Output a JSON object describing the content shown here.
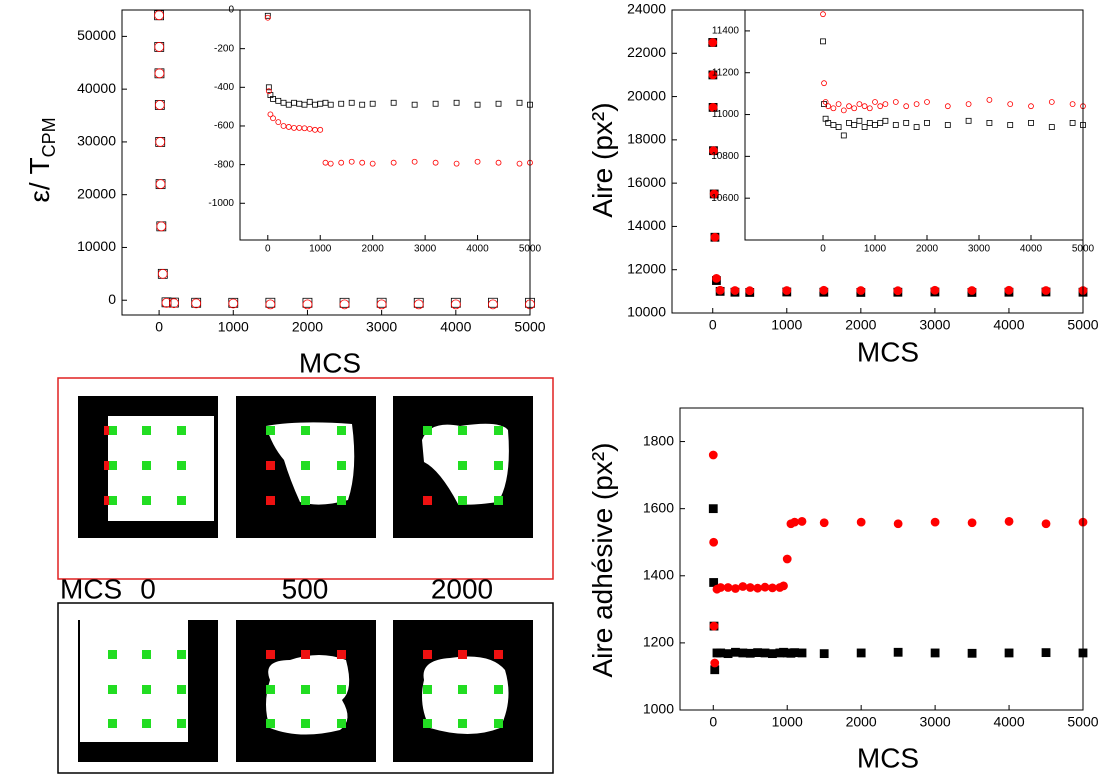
{
  "chart_data": [
    {
      "type": "scatter",
      "x_label": "MCS",
      "y_label": "ε/ T",
      "y_label_sub": "CPM",
      "x": [
        0,
        2,
        5,
        10,
        15,
        20,
        30,
        50,
        100,
        200,
        500,
        1000,
        1500,
        2000,
        2500,
        3000,
        3500,
        4000,
        4500,
        5000
      ],
      "series": [
        {
          "color": "#000000",
          "marker": "square",
          "filled": false,
          "values": [
            54000,
            48000,
            43000,
            37000,
            30000,
            22000,
            14000,
            5000,
            -400,
            -450,
            -480,
            -490,
            -480,
            -485,
            -490,
            -480,
            -490,
            -485,
            -480,
            -490
          ]
        },
        {
          "color": "#ff0000",
          "marker": "circle",
          "filled": false,
          "values": [
            54000,
            48000,
            43000,
            37000,
            30000,
            22000,
            14000,
            5000,
            -500,
            -560,
            -600,
            -620,
            -790,
            -790,
            -780,
            -790,
            -785,
            -790,
            -780,
            -790
          ]
        }
      ],
      "xlim": [
        -500,
        5000
      ],
      "ylim": [
        -2800,
        55000
      ],
      "xticks": [
        0,
        1000,
        2000,
        3000,
        4000,
        5000
      ],
      "yticks": [
        0,
        10000,
        20000,
        30000,
        40000,
        50000
      ]
    },
    {
      "type": "scatter",
      "x": [
        0,
        20,
        50,
        100,
        200,
        300,
        400,
        500,
        600,
        700,
        800,
        900,
        1000,
        1100,
        1200,
        1400,
        1600,
        1800,
        2000,
        2400,
        2800,
        3200,
        3600,
        4000,
        4400,
        4800,
        5000
      ],
      "series": [
        {
          "color": "#000000",
          "marker": "square",
          "filled": false,
          "values": [
            -30,
            -400,
            -440,
            -460,
            -470,
            -480,
            -490,
            -480,
            -485,
            -490,
            -475,
            -490,
            -485,
            -480,
            -490,
            -485,
            -480,
            -490,
            -485,
            -480,
            -490,
            -485,
            -480,
            -490,
            -485,
            -480,
            -490
          ]
        },
        {
          "color": "#ff0000",
          "marker": "circle",
          "filled": false,
          "values": [
            -40,
            -420,
            -540,
            -560,
            -580,
            -600,
            -605,
            -610,
            -610,
            -612,
            -615,
            -620,
            -620,
            -790,
            -795,
            -790,
            -785,
            -790,
            -795,
            -790,
            -785,
            -790,
            -795,
            -785,
            -790,
            -795,
            -790
          ]
        }
      ],
      "xlim": [
        -530,
        5000
      ],
      "ylim": [
        -1190,
        0
      ],
      "xticks": [
        0,
        1000,
        2000,
        3000,
        4000,
        5000
      ],
      "yticks": [
        0,
        -200,
        -400,
        -600,
        -800,
        -1000
      ]
    },
    {
      "type": "scatter",
      "x_label": "MCS",
      "y_label": "Aire (px²)",
      "x": [
        0,
        2,
        5,
        10,
        20,
        30,
        50,
        100,
        300,
        500,
        1000,
        1500,
        2000,
        2500,
        3000,
        3500,
        4000,
        4500,
        5000
      ],
      "series": [
        {
          "color": "#000000",
          "marker": "square",
          "filled": true,
          "values": [
            22500,
            21000,
            19500,
            17500,
            15500,
            13500,
            11500,
            11000,
            10960,
            10950,
            10970,
            10960,
            10950,
            10960,
            10970,
            10950,
            10960,
            10970,
            10960
          ]
        },
        {
          "color": "#ff0000",
          "marker": "circle",
          "filled": true,
          "values": [
            22500,
            21000,
            19500,
            17500,
            15500,
            13500,
            11600,
            11050,
            11040,
            11030,
            11040,
            11050,
            11040,
            11030,
            11050,
            11040,
            11050,
            11040,
            11040
          ]
        }
      ],
      "xlim": [
        -550,
        5000
      ],
      "ylim": [
        10000,
        24000
      ],
      "xticks": [
        0,
        1000,
        2000,
        3000,
        4000,
        5000
      ],
      "yticks": [
        10000,
        12000,
        14000,
        16000,
        18000,
        20000,
        22000,
        24000
      ]
    },
    {
      "type": "scatter",
      "x": [
        0,
        20,
        50,
        100,
        200,
        300,
        400,
        500,
        600,
        700,
        800,
        900,
        1000,
        1100,
        1200,
        1400,
        1600,
        1800,
        2000,
        2400,
        2800,
        3200,
        3600,
        4000,
        4400,
        4800,
        5000
      ],
      "series": [
        {
          "color": "#000000",
          "marker": "square",
          "filled": false,
          "values": [
            11350,
            11050,
            10980,
            10960,
            10950,
            10940,
            10900,
            10960,
            10950,
            10970,
            10940,
            10960,
            10950,
            10960,
            10970,
            10950,
            10960,
            10940,
            10960,
            10950,
            10970,
            10960,
            10950,
            10960,
            10940,
            10960,
            10950
          ]
        },
        {
          "color": "#ff0000",
          "marker": "circle",
          "filled": false,
          "values": [
            11480,
            11150,
            11060,
            11040,
            11030,
            11050,
            11020,
            11040,
            11030,
            11050,
            11040,
            11030,
            11060,
            11040,
            11050,
            11060,
            11040,
            11050,
            11060,
            11040,
            11050,
            11070,
            11050,
            11040,
            11060,
            11050,
            11040
          ]
        }
      ],
      "xlim": [
        -1500,
        5000
      ],
      "ylim": [
        10400,
        11500
      ],
      "xticks": [
        0,
        1000,
        2000,
        3000,
        4000,
        5000
      ],
      "yticks": [
        10600,
        10800,
        11000,
        11200,
        11400
      ]
    },
    {
      "type": "scatter",
      "x_label": "MCS",
      "y_label": "Aire adhésive (px²)",
      "x": [
        0,
        5,
        10,
        20,
        50,
        100,
        200,
        300,
        400,
        500,
        600,
        700,
        800,
        900,
        950,
        1000,
        1050,
        1100,
        1200,
        1500,
        2000,
        2500,
        3000,
        3500,
        4000,
        4500,
        5000
      ],
      "series": [
        {
          "color": "#000000",
          "marker": "square",
          "filled": true,
          "values": [
            1600,
            1380,
            1250,
            1120,
            1170,
            1170,
            1168,
            1172,
            1170,
            1169,
            1171,
            1170,
            1168,
            1170,
            1172,
            1170,
            1169,
            1171,
            1170,
            1168,
            1170,
            1172,
            1170,
            1169,
            1170,
            1171,
            1170
          ]
        },
        {
          "color": "#ff0000",
          "marker": "circle",
          "filled": true,
          "values": [
            1760,
            1500,
            1250,
            1140,
            1360,
            1365,
            1365,
            1362,
            1368,
            1365,
            1363,
            1366,
            1364,
            1365,
            1370,
            1450,
            1555,
            1560,
            1562,
            1558,
            1560,
            1555,
            1560,
            1558,
            1562,
            1555,
            1560
          ]
        }
      ],
      "xlim": [
        -450,
        5000
      ],
      "ylim": [
        1000,
        1900
      ],
      "xticks": [
        0,
        1000,
        2000,
        3000,
        4000,
        5000
      ],
      "yticks": [
        1000,
        1200,
        1400,
        1600,
        1800
      ]
    }
  ],
  "panel": {
    "row_label": "MCS",
    "times": [
      0,
      500,
      2000
    ]
  }
}
